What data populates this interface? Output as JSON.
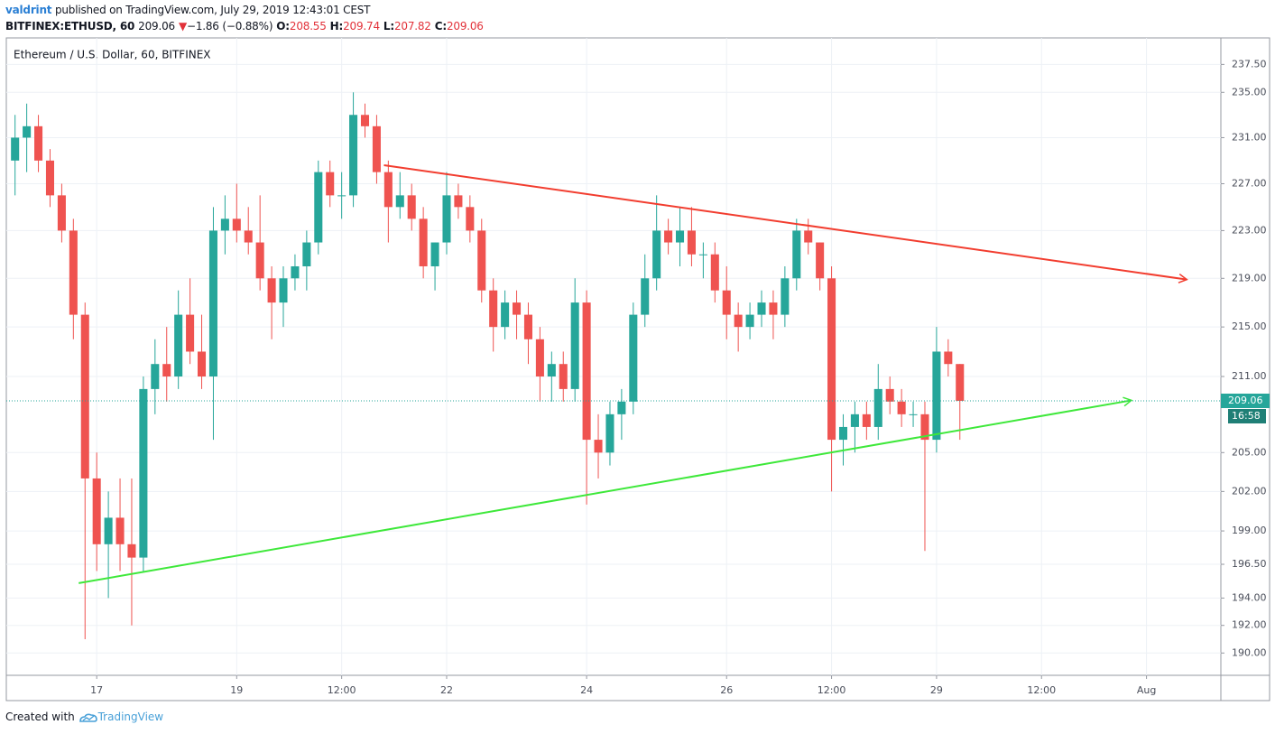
{
  "header": {
    "author": "valdrint",
    "published": "published on TradingView.com, July 29, 2019 12:43:01 CEST",
    "symbol": "BITFINEX:ETHUSD, 60",
    "price": 209.06,
    "change_arrow": "▼",
    "change": "−1.86 (−0.88%)",
    "open_label": "O:",
    "open": 208.55,
    "high_label": "H:",
    "high": 209.74,
    "low_label": "L:",
    "low": 207.82,
    "close_label": "C:",
    "close": 209.06
  },
  "chart_data": {
    "type": "candlestick",
    "title": "Ethereum / U.S. Dollar, 60, BITFINEX",
    "log_scale": true,
    "grid": true,
    "up_color": "#26a69a",
    "down_color": "#ef5350",
    "x": [
      "2019-07-15T20:00",
      "2019-07-16T00:00",
      "2019-07-16T04:00",
      "2019-07-16T08:00",
      "2019-07-16T12:00",
      "2019-07-16T16:00",
      "2019-07-16T20:00",
      "2019-07-17T00:00",
      "2019-07-17T04:00",
      "2019-07-17T08:00",
      "2019-07-17T12:00",
      "2019-07-17T16:00",
      "2019-07-17T20:00",
      "2019-07-18T00:00",
      "2019-07-18T04:00",
      "2019-07-18T08:00",
      "2019-07-18T12:00",
      "2019-07-18T16:00",
      "2019-07-18T20:00",
      "2019-07-19T00:00",
      "2019-07-19T04:00",
      "2019-07-19T08:00",
      "2019-07-19T12:00",
      "2019-07-19T16:00",
      "2019-07-19T20:00",
      "2019-07-20T00:00",
      "2019-07-20T04:00",
      "2019-07-20T08:00",
      "2019-07-20T12:00",
      "2019-07-20T16:00",
      "2019-07-20T20:00",
      "2019-07-21T00:00",
      "2019-07-21T04:00",
      "2019-07-21T08:00",
      "2019-07-21T12:00",
      "2019-07-21T16:00",
      "2019-07-21T20:00",
      "2019-07-22T00:00",
      "2019-07-22T04:00",
      "2019-07-22T08:00",
      "2019-07-22T12:00",
      "2019-07-22T16:00",
      "2019-07-22T20:00",
      "2019-07-23T00:00",
      "2019-07-23T04:00",
      "2019-07-23T08:00",
      "2019-07-23T12:00",
      "2019-07-23T16:00",
      "2019-07-23T20:00",
      "2019-07-24T00:00",
      "2019-07-24T04:00",
      "2019-07-24T08:00",
      "2019-07-24T12:00",
      "2019-07-24T16:00",
      "2019-07-24T20:00",
      "2019-07-25T00:00",
      "2019-07-25T04:00",
      "2019-07-25T08:00",
      "2019-07-25T12:00",
      "2019-07-25T16:00",
      "2019-07-25T20:00",
      "2019-07-26T00:00",
      "2019-07-26T04:00",
      "2019-07-26T08:00",
      "2019-07-26T12:00",
      "2019-07-26T16:00",
      "2019-07-26T20:00",
      "2019-07-27T00:00",
      "2019-07-27T04:00",
      "2019-07-27T08:00",
      "2019-07-27T12:00",
      "2019-07-27T16:00",
      "2019-07-27T20:00",
      "2019-07-28T00:00",
      "2019-07-28T04:00",
      "2019-07-28T08:00",
      "2019-07-28T12:00",
      "2019-07-28T16:00",
      "2019-07-28T20:00",
      "2019-07-29T00:00",
      "2019-07-29T04:00",
      "2019-07-29T08:00"
    ],
    "open": [
      229,
      231,
      232,
      229,
      226,
      223,
      216,
      203,
      198,
      200,
      198,
      197,
      210,
      212,
      211,
      216,
      213,
      211,
      223,
      224,
      223,
      222,
      219,
      217,
      219,
      220,
      222,
      228,
      226,
      226,
      233,
      232,
      228,
      225,
      226,
      224,
      220,
      222,
      226,
      225,
      223,
      218,
      215,
      217,
      216,
      214,
      211,
      212,
      210,
      217,
      206,
      205,
      208,
      209,
      216,
      219,
      223,
      222,
      223,
      221,
      221,
      218,
      216,
      215,
      216,
      217,
      216,
      219,
      223,
      222,
      219,
      206,
      207,
      208,
      207,
      210,
      209,
      208,
      208,
      206,
      213,
      212
    ],
    "high": [
      233,
      234,
      233,
      230,
      227,
      224,
      217,
      205,
      202,
      203,
      203,
      211,
      214,
      215,
      218,
      219,
      216,
      225,
      226,
      227,
      225,
      226,
      220,
      220,
      221,
      223,
      229,
      229,
      228,
      235,
      234,
      233,
      229,
      228,
      227,
      225,
      222,
      228,
      227,
      226,
      224,
      219,
      218,
      218,
      217,
      215,
      213,
      213,
      219,
      218,
      208,
      209,
      210,
      217,
      221,
      226,
      224,
      225,
      225,
      222,
      222,
      220,
      217,
      217,
      218,
      218,
      220,
      224,
      224,
      222,
      220,
      208,
      209,
      209,
      212,
      211,
      210,
      209,
      209,
      215,
      214,
      212
    ],
    "low": [
      226,
      228,
      228,
      225,
      222,
      214,
      191,
      196,
      194,
      196,
      192,
      196,
      208,
      209,
      210,
      212,
      210,
      206,
      221,
      222,
      221,
      218,
      214,
      215,
      218,
      218,
      221,
      225,
      224,
      225,
      231,
      227,
      222,
      224,
      223,
      219,
      218,
      221,
      224,
      222,
      217,
      213,
      214,
      214,
      212,
      209,
      209,
      209,
      209,
      201,
      203,
      204,
      206,
      208,
      215,
      218,
      221,
      220,
      220,
      219,
      217,
      214,
      213,
      214,
      215,
      214,
      215,
      218,
      221,
      218,
      202,
      204,
      205,
      206,
      206,
      208,
      207,
      207,
      197.5,
      205,
      211,
      206
    ],
    "close": [
      231,
      232,
      229,
      226,
      223,
      216,
      203,
      198,
      200,
      198,
      197,
      210,
      212,
      211,
      216,
      213,
      211,
      223,
      224,
      223,
      222,
      219,
      217,
      219,
      220,
      222,
      228,
      226,
      226,
      233,
      232,
      228,
      225,
      226,
      224,
      220,
      222,
      226,
      225,
      223,
      218,
      215,
      217,
      216,
      214,
      211,
      212,
      210,
      217,
      206,
      205,
      208,
      209,
      216,
      219,
      223,
      222,
      223,
      221,
      221,
      218,
      216,
      215,
      216,
      217,
      216,
      219,
      223,
      222,
      219,
      206,
      207,
      208,
      207,
      210,
      209,
      208,
      208,
      206,
      213,
      212,
      209.06
    ],
    "trend_lines": [
      {
        "color": "#f23d2f",
        "x": [
          "2019-07-21T02:30",
          "2019-08-01T13:50"
        ],
        "values": [
          228.6,
          218.9
        ]
      },
      {
        "color": "#3ee83a",
        "x": [
          "2019-07-16T17:50",
          "2019-07-31T18:50"
        ],
        "values": [
          195.1,
          209.1
        ]
      }
    ],
    "last_price": 209.06,
    "countdown": "16:58",
    "xlim": [
      "2019-07-15T17:00",
      "2019-08-02T01:30"
    ],
    "xticks": [
      {
        "value": "2019-07-17T00:00",
        "label": "17"
      },
      {
        "value": "2019-07-19T00:00",
        "label": "19"
      },
      {
        "value": "2019-07-20T12:00",
        "label": "12:00"
      },
      {
        "value": "2019-07-22T00:00",
        "label": "22"
      },
      {
        "value": "2019-07-24T00:00",
        "label": "24"
      },
      {
        "value": "2019-07-26T00:00",
        "label": "26"
      },
      {
        "value": "2019-07-27T12:00",
        "label": "12:00"
      },
      {
        "value": "2019-07-29T00:00",
        "label": "29"
      },
      {
        "value": "2019-07-30T12:00",
        "label": "12:00"
      },
      {
        "value": "2019-08-01T00:00",
        "label": "Aug"
      }
    ],
    "ylim": [
      188.4,
      239.9
    ],
    "yticks": [
      {
        "value": 190,
        "label": "190.00"
      },
      {
        "value": 192,
        "label": "192.00"
      },
      {
        "value": 194,
        "label": "194.00"
      },
      {
        "value": 196.5,
        "label": "196.50"
      },
      {
        "value": 199,
        "label": "199.00"
      },
      {
        "value": 202,
        "label": "202.00"
      },
      {
        "value": 205,
        "label": "205.00"
      },
      {
        "value": 211,
        "label": "211.00"
      },
      {
        "value": 215,
        "label": "215.00"
      },
      {
        "value": 219,
        "label": "219.00"
      },
      {
        "value": 223,
        "label": "223.00"
      },
      {
        "value": 227,
        "label": "227.00"
      },
      {
        "value": 231,
        "label": "231.00"
      },
      {
        "value": 235,
        "label": "235.00"
      },
      {
        "value": 237.5,
        "label": "237.50"
      }
    ]
  },
  "footer": {
    "created": "Created with",
    "brand": "TradingView"
  }
}
